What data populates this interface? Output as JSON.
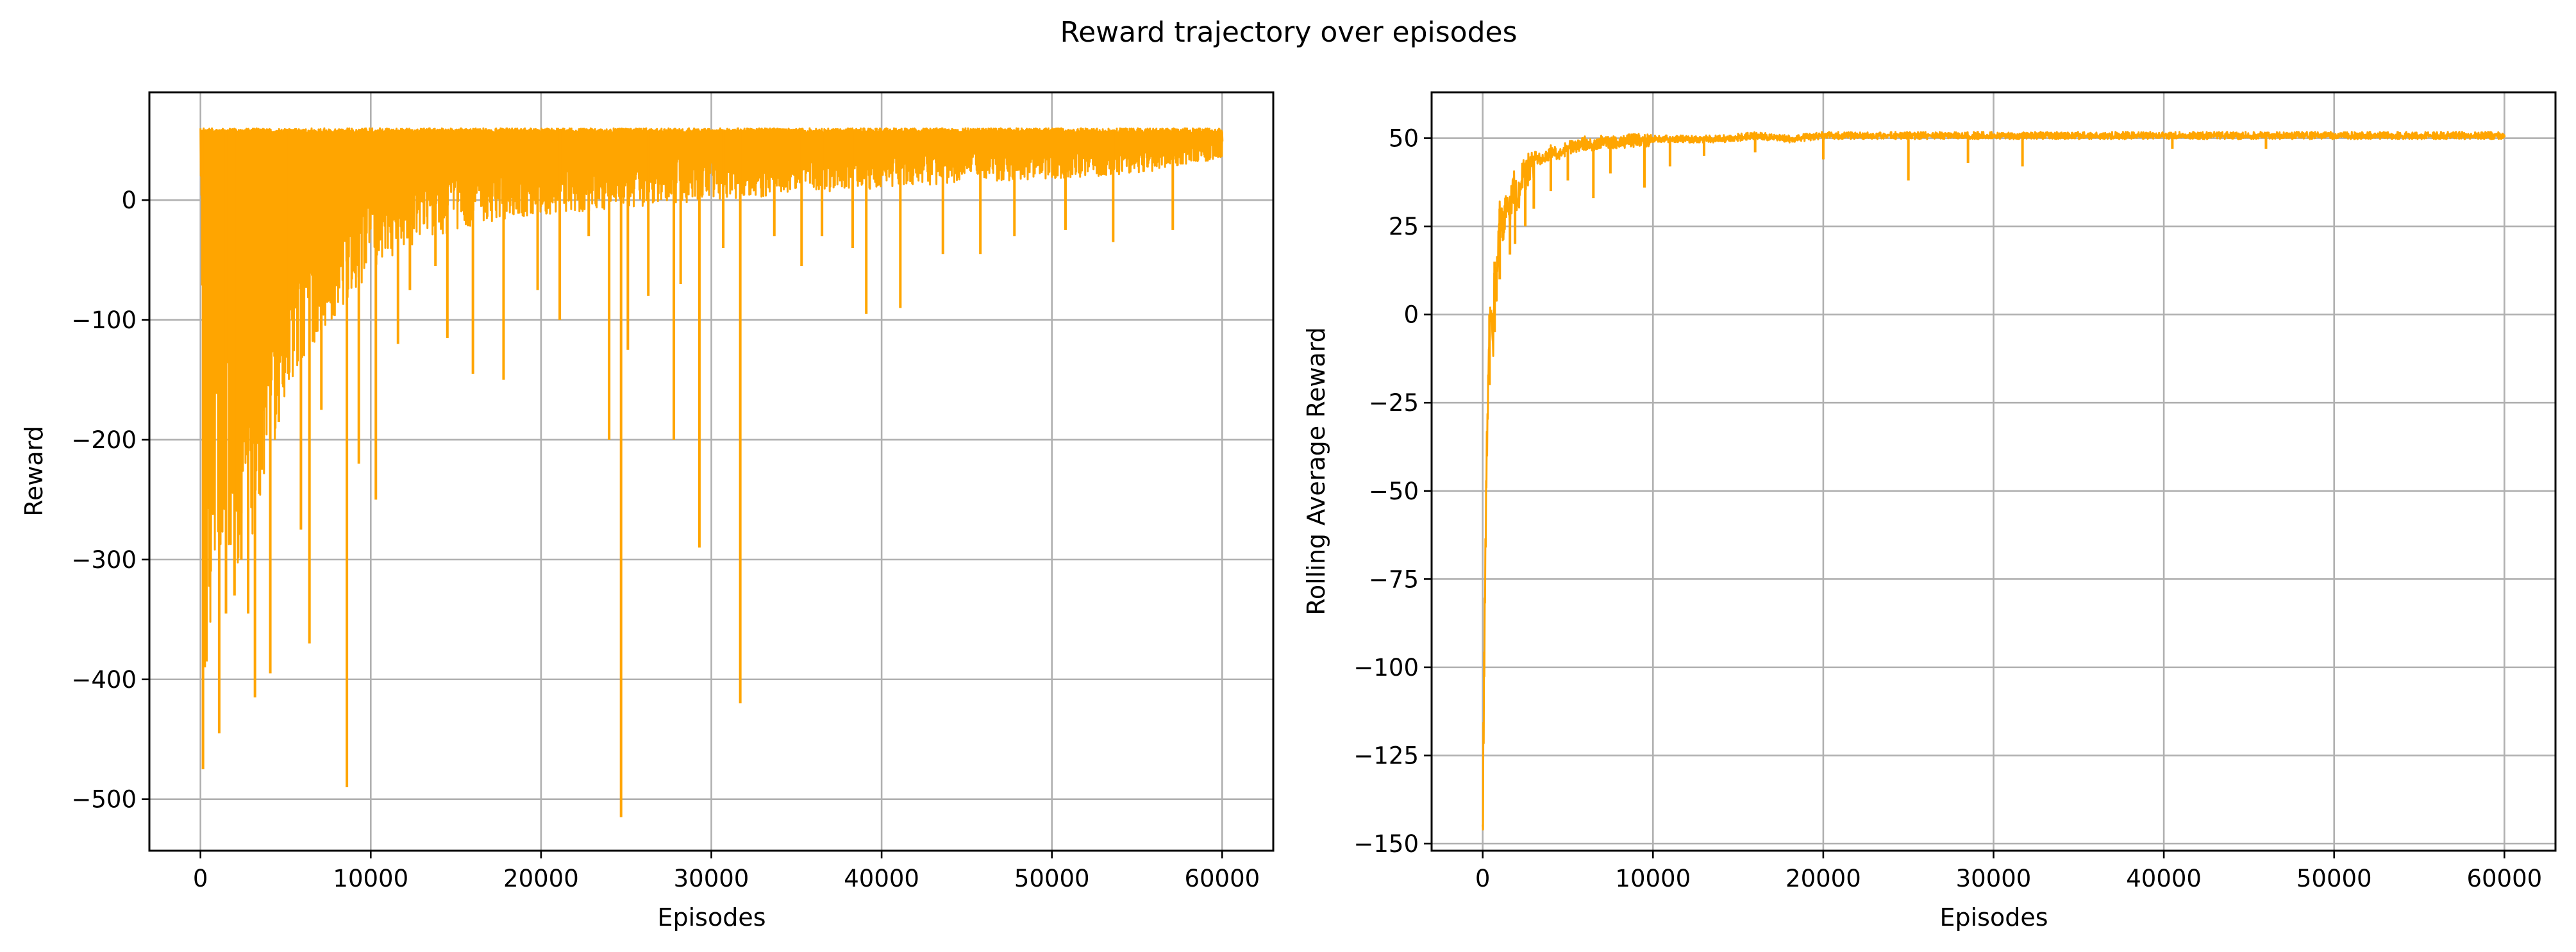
{
  "figure": {
    "title": "Reward trajectory over episodes"
  },
  "chart_data": [
    {
      "type": "line",
      "xlabel": "Episodes",
      "ylabel": "Reward",
      "xlim": [
        -3000,
        63000
      ],
      "ylim": [
        -543,
        90
      ],
      "xticks": [
        0,
        10000,
        20000,
        30000,
        40000,
        50000,
        60000
      ],
      "xtick_labels": [
        "0",
        "10000",
        "20000",
        "30000",
        "40000",
        "50000",
        "60000"
      ],
      "yticks": [
        -500,
        -400,
        -300,
        -200,
        -100,
        0
      ],
      "ytick_labels": [
        "−500",
        "−400",
        "−300",
        "−200",
        "−100",
        "0"
      ],
      "grid": true,
      "series": [
        {
          "color": "#FFA500",
          "note_max": "values plateau near 55-60 after early training",
          "upper": {
            "x": [
              0,
              60000
            ],
            "y": [
              60,
              60
            ]
          },
          "lower_envelope": {
            "x": [
              0,
              300,
              800,
              1500,
              2500,
              3500,
              4500,
              5500,
              7000,
              8500,
              10000,
              12000,
              15000,
              18000,
              22000,
              26000,
              30000,
              35000,
              40000,
              45000,
              50000,
              55000,
              60000
            ],
            "y": [
              20,
              -380,
              -330,
              -310,
              -300,
              -260,
              -190,
              -150,
              -110,
              -90,
              -60,
              -40,
              -25,
              -15,
              -10,
              -5,
              0,
              5,
              10,
              15,
              18,
              22,
              35
            ]
          },
          "spikes": {
            "x": [
              150,
              250,
              350,
              600,
              1100,
              1500,
              2000,
              2400,
              2800,
              3200,
              3600,
              4100,
              4600,
              5200,
              5900,
              6400,
              7100,
              8600,
              9300,
              10300,
              11600,
              12300,
              13800,
              14500,
              16000,
              17800,
              19800,
              21100,
              22800,
              24000,
              24700,
              25100,
              26300,
              27800,
              28200,
              29300,
              30700,
              31700,
              33700,
              35300,
              36500,
              38300,
              39100,
              41100,
              43600,
              45800,
              47800,
              50800,
              53600,
              57100
            ],
            "y": [
              -475,
              -390,
              -385,
              -310,
              -445,
              -345,
              -330,
              -300,
              -345,
              -415,
              -225,
              -395,
              -185,
              -140,
              -275,
              -370,
              -175,
              -490,
              -220,
              -250,
              -120,
              -75,
              -55,
              -115,
              -145,
              -150,
              -75,
              -100,
              -30,
              -200,
              -515,
              -125,
              -80,
              -200,
              -70,
              -290,
              -40,
              -420,
              -30,
              -55,
              -30,
              -40,
              -95,
              -90,
              -45,
              -45,
              -30,
              -25,
              -35,
              -25
            ]
          }
        }
      ]
    },
    {
      "type": "line",
      "xlabel": "Episodes",
      "ylabel": "Rolling Average Reward",
      "xlim": [
        -3000,
        63000
      ],
      "ylim": [
        -152,
        63
      ],
      "xticks": [
        0,
        10000,
        20000,
        30000,
        40000,
        50000,
        60000
      ],
      "xtick_labels": [
        "0",
        "10000",
        "20000",
        "30000",
        "40000",
        "50000",
        "60000"
      ],
      "yticks": [
        -150,
        -125,
        -100,
        -75,
        -50,
        -25,
        0,
        25,
        50
      ],
      "ytick_labels": [
        "−150",
        "−125",
        "−100",
        "−75",
        "−50",
        "−25",
        "0",
        "25",
        "50"
      ],
      "grid": true,
      "series": [
        {
          "color": "#FFA500",
          "x": [
            0,
            50,
            100,
            150,
            200,
            300,
            400,
            500,
            600,
            700,
            800,
            900,
            1000,
            1200,
            1400,
            1600,
            1800,
            2000,
            2300,
            2600,
            3000,
            3500,
            4000,
            4500,
            5000,
            5500,
            6000,
            6500,
            7000,
            8000,
            9000,
            10000,
            12000,
            14000,
            16000,
            18000,
            20000,
            22000,
            25000,
            28000,
            30000,
            32000,
            35000,
            40000,
            45000,
            50000,
            55000,
            60000
          ],
          "y": [
            -145,
            -110,
            -90,
            -65,
            -45,
            -20,
            0,
            5,
            -10,
            15,
            10,
            20,
            30,
            25,
            35,
            30,
            38,
            33,
            40,
            42,
            45,
            44,
            47,
            46,
            48,
            48,
            49,
            48,
            50,
            49,
            50,
            50,
            50,
            50,
            51,
            50,
            51,
            51,
            51,
            51,
            51,
            51,
            51,
            51,
            51,
            51,
            51,
            51
          ],
          "dips": {
            "x": [
              400,
              700,
              1000,
              1600,
              1900,
              2500,
              3000,
              4000,
              5000,
              6500,
              7500,
              9500,
              11000,
              13000,
              16000,
              20000,
              25000,
              28500,
              31700,
              40500,
              46000
            ],
            "y": [
              -20,
              -5,
              10,
              17,
              20,
              25,
              30,
              35,
              38,
              33,
              40,
              36,
              42,
              45,
              46,
              44,
              38,
              43,
              42,
              47,
              47
            ]
          }
        }
      ]
    }
  ]
}
